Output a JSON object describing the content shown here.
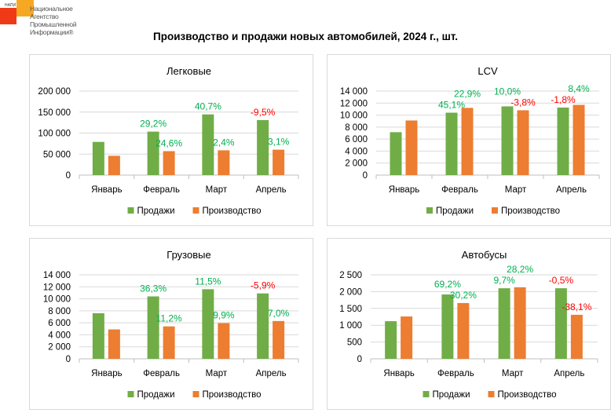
{
  "logo": {
    "small": "НАПИ",
    "lines": [
      "Национальное",
      "Агентство",
      "Промышленной",
      "Информации®"
    ]
  },
  "title": "Производство и продажи новых автомобилей, 2024 г., шт.",
  "colors": {
    "sales": "#70ad47",
    "production": "#ed7d31",
    "positive": "#00b050",
    "negative": "#ff0000",
    "grid": "#d9d9d9"
  },
  "chart_data": [
    {
      "type": "bar",
      "title": "Легковые",
      "categories": [
        "Январь",
        "Февраль",
        "Март",
        "Апрель"
      ],
      "ylim": [
        0,
        200000
      ],
      "yticks": [
        0,
        50000,
        100000,
        150000,
        200000
      ],
      "ytick_labels": [
        "0",
        "50 000",
        "100 000",
        "150 000",
        "200 000"
      ],
      "series": [
        {
          "name": "Продажи",
          "values": [
            79000,
            103500,
            144500,
            131000
          ],
          "labels": [
            null,
            "29,2%",
            "40,7%",
            "-9,5%"
          ]
        },
        {
          "name": "Производство",
          "values": [
            46000,
            57000,
            59000,
            60500
          ],
          "labels": [
            null,
            "24,6%",
            "2,4%",
            "3,1%"
          ]
        }
      ],
      "legend": "bottom"
    },
    {
      "type": "bar",
      "title": "LCV",
      "categories": [
        "Январь",
        "Февраль",
        "Март",
        "Апрель"
      ],
      "ylim": [
        0,
        14000
      ],
      "yticks": [
        0,
        2000,
        4000,
        6000,
        8000,
        10000,
        12000,
        14000
      ],
      "ytick_labels": [
        "0",
        "2 000",
        "4 000",
        "6 000",
        "8 000",
        "10 000",
        "12 000",
        "14 000"
      ],
      "series": [
        {
          "name": "Продажи",
          "values": [
            7150,
            10400,
            11450,
            11250
          ],
          "labels": [
            null,
            "45,1%",
            "10,0%",
            "-1,8%"
          ]
        },
        {
          "name": "Производство",
          "values": [
            9100,
            11200,
            10800,
            11700
          ],
          "labels": [
            null,
            "22,9%",
            "-3,8%",
            "8,4%"
          ]
        }
      ],
      "legend": "bottom"
    },
    {
      "type": "bar",
      "title": "Грузовые",
      "categories": [
        "Январь",
        "Февраль",
        "Март",
        "Апрель"
      ],
      "ylim": [
        0,
        14000
      ],
      "yticks": [
        0,
        2000,
        4000,
        6000,
        8000,
        10000,
        12000,
        14000
      ],
      "ytick_labels": [
        "0",
        "2 000",
        "4 000",
        "6 000",
        "8 000",
        "10 000",
        "12 000",
        "14 000"
      ],
      "series": [
        {
          "name": "Продажи",
          "values": [
            7600,
            10400,
            11600,
            10900
          ],
          "labels": [
            null,
            "36,3%",
            "11,5%",
            "-5,9%"
          ]
        },
        {
          "name": "Производство",
          "values": [
            4900,
            5400,
            5950,
            6300
          ],
          "labels": [
            null,
            "11,2%",
            "9,9%",
            "7,0%"
          ]
        }
      ],
      "legend": "bottom"
    },
    {
      "type": "bar",
      "title": "Автобусы",
      "categories": [
        "Январь",
        "Февраль",
        "Март",
        "Апрель"
      ],
      "ylim": [
        0,
        2500
      ],
      "yticks": [
        0,
        500,
        1000,
        1500,
        2000,
        2500
      ],
      "ytick_labels": [
        "0",
        "500",
        "1 000",
        "1 500",
        "2 000",
        "2 500"
      ],
      "series": [
        {
          "name": "Продажи",
          "values": [
            1120,
            1915,
            2100,
            2100
          ],
          "labels": [
            null,
            "69,2%",
            "9,7%",
            "-0,5%"
          ]
        },
        {
          "name": "Производство",
          "values": [
            1260,
            1660,
            2130,
            1310
          ],
          "labels": [
            null,
            "30,2%",
            "28,2%",
            "-38,1%"
          ]
        }
      ],
      "legend": "bottom"
    }
  ]
}
